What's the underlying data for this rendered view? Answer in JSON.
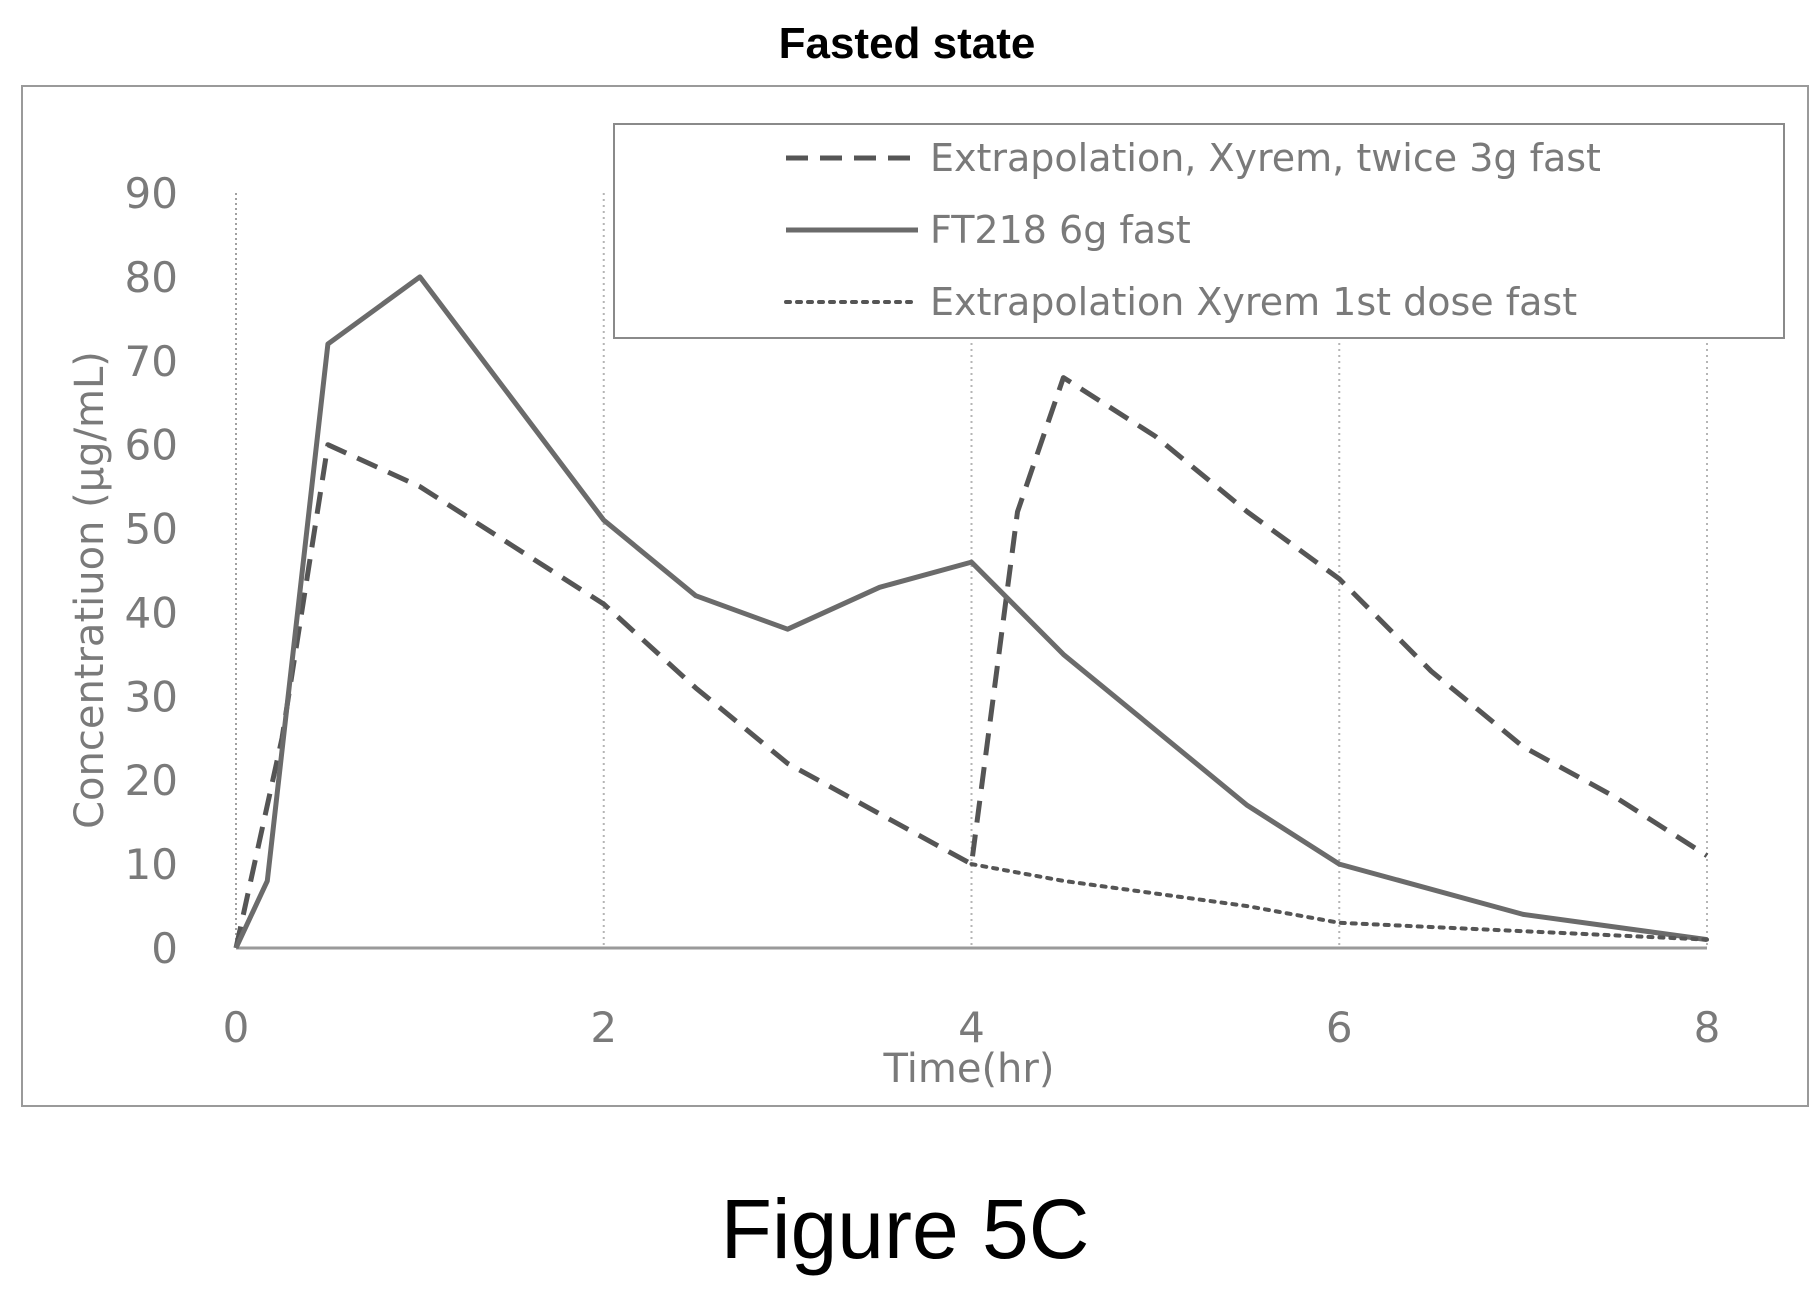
{
  "chart_data": {
    "type": "line",
    "title": "Fasted state",
    "xlabel": "Time(hr)",
    "ylabel": "Concentratiuon (µg/mL)",
    "xlim": [
      0,
      8
    ],
    "ylim": [
      0,
      90
    ],
    "xticks": [
      0,
      2,
      4,
      6,
      8
    ],
    "yticks": [
      0,
      10,
      20,
      30,
      40,
      50,
      60,
      70,
      80,
      90
    ],
    "grid": "vertical",
    "legend_position": "top-right",
    "series": [
      {
        "name": "Extrapolation, Xyrem, twice 3g fast",
        "style": "dashed",
        "color": "#555555",
        "x": [
          0,
          0.25,
          0.5,
          1,
          1.5,
          2,
          2.5,
          3,
          3.5,
          4,
          4.25,
          4.5,
          5,
          5.5,
          6,
          6.5,
          7,
          7.5,
          8
        ],
        "y": [
          0,
          25,
          60,
          55,
          48,
          41,
          31,
          22,
          16,
          10,
          52,
          68,
          61,
          52,
          44,
          33,
          24,
          18,
          11
        ]
      },
      {
        "name": "FT218 6g fast",
        "style": "solid",
        "color": "#6b6b6b",
        "x": [
          0,
          0.17,
          0.5,
          1,
          2,
          2.5,
          3,
          3.5,
          4,
          4.5,
          5,
          5.5,
          6,
          7,
          8
        ],
        "y": [
          0,
          8,
          72,
          80,
          51,
          42,
          38,
          43,
          46,
          35,
          26,
          17,
          10,
          4,
          1
        ]
      },
      {
        "name": "Extrapolation Xyrem 1st dose fast",
        "style": "dotted",
        "color": "#555555",
        "x": [
          4,
          4.5,
          5,
          5.5,
          6,
          7,
          8
        ],
        "y": [
          10,
          8,
          6.5,
          5,
          3,
          2,
          1
        ]
      }
    ]
  },
  "caption": "Figure 5C"
}
